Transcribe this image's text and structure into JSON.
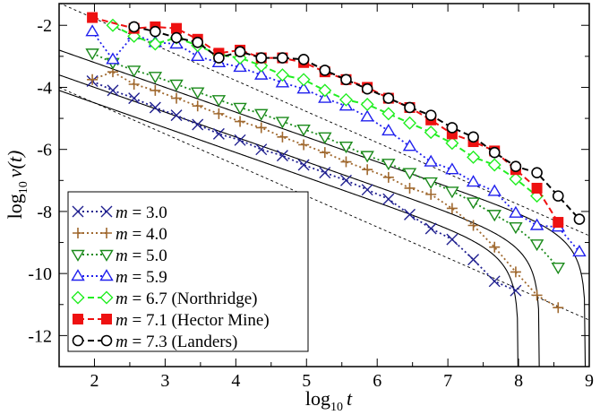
{
  "chart_data": {
    "type": "line",
    "title": "",
    "xlabel": {
      "prefix": "log",
      "sub": "10",
      "var": "t"
    },
    "ylabel": {
      "prefix": "log",
      "sub": "10",
      "var": "ν(t)"
    },
    "xlim": [
      1.5,
      9.0
    ],
    "ylim": [
      -13.0,
      -1.3
    ],
    "xticks": [
      2,
      3,
      4,
      5,
      6,
      7,
      8,
      9
    ],
    "yticks": [
      -12,
      -10,
      -8,
      -6,
      -4,
      -2
    ],
    "grid": false,
    "legend_position": "bottom-left",
    "series": [
      {
        "key": "m30",
        "m": "3.0",
        "note": "",
        "color": "#1f1f8f",
        "marker": "x",
        "line": "dotted",
        "x": [
          1.97,
          2.26,
          2.56,
          2.86,
          3.16,
          3.46,
          3.76,
          4.06,
          4.36,
          4.66,
          4.96,
          5.26,
          5.56,
          5.86,
          6.16,
          6.46,
          6.76,
          7.06,
          7.36,
          7.66,
          7.96
        ],
        "y": [
          -3.8,
          -4.1,
          -4.35,
          -4.65,
          -4.9,
          -5.2,
          -5.5,
          -5.7,
          -6.0,
          -6.2,
          -6.5,
          -6.75,
          -7.0,
          -7.3,
          -7.6,
          -8.1,
          -8.55,
          -8.9,
          -9.55,
          -10.25,
          -10.55
        ]
      },
      {
        "key": "m40",
        "m": "4.0",
        "note": "",
        "color": "#a0692f",
        "marker": "plus",
        "line": "dotted",
        "x": [
          1.97,
          2.26,
          2.56,
          2.86,
          3.16,
          3.46,
          3.76,
          4.06,
          4.36,
          4.66,
          4.96,
          5.26,
          5.56,
          5.86,
          6.16,
          6.46,
          6.76,
          7.06,
          7.36,
          7.66,
          7.96,
          8.26,
          8.56
        ],
        "y": [
          -3.75,
          -3.5,
          -3.9,
          -4.1,
          -4.35,
          -4.6,
          -4.85,
          -5.1,
          -5.3,
          -5.6,
          -5.85,
          -6.1,
          -6.4,
          -6.65,
          -6.9,
          -7.25,
          -7.45,
          -7.9,
          -8.45,
          -9.15,
          -9.95,
          -10.7,
          -11.1
        ]
      },
      {
        "key": "m50",
        "m": "5.0",
        "note": "",
        "color": "#1a8a1a",
        "marker": "triangle-down",
        "line": "dotted",
        "x": [
          1.97,
          2.26,
          2.56,
          2.86,
          3.16,
          3.46,
          3.76,
          4.06,
          4.36,
          4.66,
          4.96,
          5.26,
          5.56,
          5.86,
          6.16,
          6.46,
          6.76,
          7.06,
          7.36,
          7.66,
          7.96,
          8.26,
          8.56
        ],
        "y": [
          -2.9,
          -3.2,
          -3.45,
          -3.65,
          -3.9,
          -4.15,
          -4.4,
          -4.65,
          -4.85,
          -5.1,
          -5.35,
          -5.6,
          -5.9,
          -6.2,
          -6.45,
          -6.75,
          -7.05,
          -7.35,
          -7.7,
          -8.1,
          -8.5,
          -9.05,
          -9.8
        ]
      },
      {
        "key": "m59",
        "m": "5.9",
        "note": "",
        "color": "#2020ee",
        "marker": "triangle-up",
        "line": "dotted",
        "x": [
          1.97,
          2.26,
          2.56,
          2.86,
          3.16,
          3.46,
          3.76,
          4.06,
          4.36,
          4.66,
          4.96,
          5.26,
          5.56,
          5.86,
          6.16,
          6.46,
          6.76,
          7.06,
          7.36,
          7.66,
          7.96,
          8.26,
          8.56,
          8.86
        ],
        "y": [
          -2.2,
          -3.1,
          -2.3,
          -2.55,
          -2.6,
          -3.0,
          -3.2,
          -3.35,
          -3.6,
          -3.85,
          -4.05,
          -4.35,
          -4.6,
          -4.95,
          -5.4,
          -5.9,
          -6.4,
          -6.65,
          -7.05,
          -7.35,
          -8.05,
          -8.45,
          -8.5,
          -9.3
        ]
      },
      {
        "key": "m67",
        "m": "6.7",
        "note": " (Northridge)",
        "color": "#22ee22",
        "marker": "diamond",
        "line": "dashed",
        "x": [
          2.26,
          2.56,
          2.86,
          3.16,
          3.46,
          3.76,
          4.06,
          4.36,
          4.66,
          4.96,
          5.26,
          5.56,
          5.86,
          6.16,
          6.46,
          6.76,
          7.06,
          7.36,
          7.66,
          7.96,
          8.26
        ],
        "y": [
          -2.0,
          -2.35,
          -2.6,
          -2.4,
          -2.65,
          -2.95,
          -3.05,
          -3.3,
          -3.6,
          -3.75,
          -4.1,
          -4.4,
          -4.55,
          -4.85,
          -5.15,
          -5.45,
          -5.8,
          -6.25,
          -6.5,
          -6.95,
          -7.5
        ]
      },
      {
        "key": "m71",
        "m": "7.1",
        "note": " (Hector Mine)",
        "color": "#ee1111",
        "marker": "square-filled",
        "line": "dashed",
        "x": [
          1.97,
          2.56,
          2.86,
          3.16,
          3.46,
          3.76,
          4.06,
          4.36,
          4.66,
          4.96,
          5.26,
          5.56,
          5.86,
          6.16,
          6.46,
          6.76,
          7.06,
          7.36,
          7.66,
          7.96,
          8.26,
          8.56
        ],
        "y": [
          -1.75,
          -2.1,
          -2.05,
          -2.1,
          -2.45,
          -2.9,
          -2.8,
          -3.05,
          -3.05,
          -3.2,
          -3.5,
          -3.75,
          -4.0,
          -4.35,
          -4.65,
          -5.05,
          -5.5,
          -5.75,
          -6.05,
          -6.65,
          -7.25,
          -8.35
        ]
      },
      {
        "key": "m73",
        "m": "7.3",
        "note": " (Landers)",
        "color": "#000000",
        "marker": "circle-open",
        "line": "dashed",
        "x": [
          2.56,
          2.86,
          3.16,
          3.46,
          3.76,
          4.06,
          4.36,
          4.66,
          4.96,
          5.26,
          5.56,
          5.86,
          6.16,
          6.46,
          6.76,
          7.06,
          7.36,
          7.66,
          7.96,
          8.26,
          8.56,
          8.86
        ],
        "y": [
          -2.05,
          -2.2,
          -2.4,
          -2.55,
          -3.05,
          -2.85,
          -3.05,
          -3.05,
          -3.1,
          -3.45,
          -3.75,
          -4.05,
          -4.35,
          -4.65,
          -4.9,
          -5.3,
          -5.6,
          -6.1,
          -6.55,
          -6.75,
          -7.5,
          -8.25
        ]
      }
    ],
    "fit_curves": [
      {
        "key": "fit-m30",
        "a": -2.9,
        "b": -0.8,
        "tmax_log": 8.0
      },
      {
        "key": "fit-m40",
        "a": -2.4,
        "b": -0.8,
        "tmax_log": 8.3
      },
      {
        "key": "fit-m50",
        "a": -1.6,
        "b": -0.8,
        "tmax_log": 8.95
      }
    ],
    "reference_lines": [
      {
        "key": "ref-upper",
        "a": 0.22,
        "b": -1.0
      },
      {
        "key": "ref-lower",
        "a": -2.5,
        "b": -1.0
      }
    ]
  }
}
